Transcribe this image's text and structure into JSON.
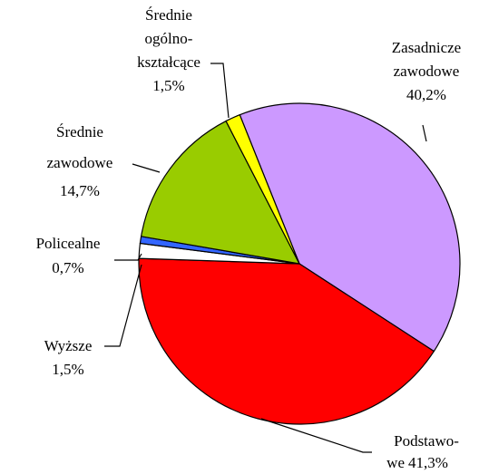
{
  "chart_data": {
    "type": "pie",
    "categories": [
      [
        "Zasadnicze",
        "zawodowe"
      ],
      [
        "Podstawo-",
        "we"
      ],
      [
        "Wyższe"
      ],
      [
        "Policealne"
      ],
      [
        "Średnie",
        "zawodowe"
      ],
      [
        "Średnie",
        "ogólno-",
        "kształcące"
      ]
    ],
    "values": [
      40.2,
      41.3,
      1.5,
      0.7,
      14.7,
      1.5
    ],
    "value_labels": [
      "40,2%",
      "41,3%",
      "1,5%",
      "0,7%",
      "14,7%",
      "1,5%"
    ],
    "colors": [
      "#cc99ff",
      "#ff0000",
      "#ffffff",
      "#3366ff",
      "#99cc00",
      "#ffff00"
    ]
  }
}
